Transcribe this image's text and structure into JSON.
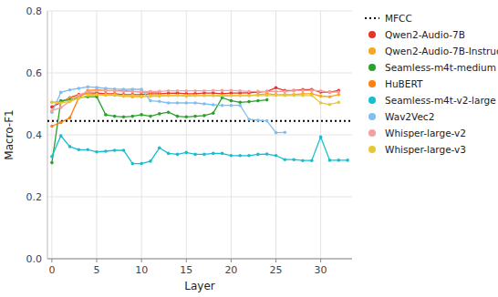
{
  "chart_data": {
    "type": "line",
    "xlabel": "Layer",
    "ylabel": "Macro-F1",
    "xlim": [
      -0.5,
      33.5
    ],
    "ylim": [
      0.0,
      0.8
    ],
    "xticks": [
      0,
      5,
      10,
      15,
      20,
      25,
      30
    ],
    "yticks": [
      {
        "value": 0.0,
        "label": "0.0"
      },
      0.2,
      0.4,
      0.6,
      0.8
    ],
    "grid": true,
    "legend": "right",
    "marker": "circle",
    "series": [
      {
        "name": "MFCC",
        "type": "hline",
        "color": "#000000",
        "line_style": "dotted",
        "marker": "none",
        "values": [
          0.445
        ]
      },
      {
        "name": "Qwen2-Audio-7B",
        "color": "#e8312a",
        "x": [
          0,
          1,
          2,
          3,
          4,
          5,
          6,
          7,
          8,
          9,
          10,
          11,
          12,
          13,
          14,
          15,
          16,
          17,
          18,
          19,
          20,
          21,
          22,
          23,
          24,
          25,
          26,
          27,
          28,
          29,
          30,
          31,
          32
        ],
        "values": [
          0.49,
          0.505,
          0.52,
          0.53,
          0.535,
          0.535,
          0.533,
          0.533,
          0.53,
          0.53,
          0.53,
          0.533,
          0.533,
          0.534,
          0.535,
          0.533,
          0.533,
          0.535,
          0.535,
          0.533,
          0.535,
          0.535,
          0.536,
          0.538,
          0.54,
          0.552,
          0.543,
          0.543,
          0.546,
          0.546,
          0.538,
          0.538,
          0.543
        ]
      },
      {
        "name": "Qwen2-Audio-7B-Instruct",
        "color": "#f5a623",
        "x": [
          0,
          1,
          2,
          3,
          4,
          5,
          6,
          7,
          8,
          9,
          10,
          11,
          12,
          13,
          14,
          15,
          16,
          17,
          18,
          19,
          20,
          21,
          22,
          23,
          24,
          25,
          26,
          27,
          28,
          29,
          30,
          31,
          32
        ],
        "values": [
          0.505,
          0.508,
          0.518,
          0.527,
          0.533,
          0.53,
          0.528,
          0.528,
          0.525,
          0.523,
          0.523,
          0.525,
          0.525,
          0.527,
          0.528,
          0.525,
          0.527,
          0.527,
          0.527,
          0.525,
          0.527,
          0.527,
          0.527,
          0.53,
          0.533,
          0.53,
          0.53,
          0.53,
          0.533,
          0.533,
          0.525,
          0.523,
          0.53
        ]
      },
      {
        "name": "Seamless-m4t-medium",
        "color": "#2ca02c",
        "x": [
          0,
          1,
          2,
          3,
          4,
          5,
          6,
          7,
          8,
          9,
          10,
          11,
          12,
          13,
          14,
          15,
          16,
          17,
          18,
          19,
          20,
          21,
          22,
          23,
          24
        ],
        "values": [
          0.31,
          0.51,
          0.513,
          0.52,
          0.523,
          0.523,
          0.465,
          0.46,
          0.458,
          0.46,
          0.465,
          0.46,
          0.468,
          0.473,
          0.46,
          0.458,
          0.46,
          0.462,
          0.47,
          0.52,
          0.51,
          0.505,
          0.507,
          0.51,
          0.513
        ]
      },
      {
        "name": "HuBERT",
        "color": "#ff7f0e",
        "x": [
          0,
          1,
          2,
          3,
          4,
          5,
          6,
          7,
          8,
          9,
          10,
          11,
          12
        ],
        "values": [
          0.428,
          0.44,
          0.455,
          0.52,
          0.543,
          0.545,
          0.543,
          0.543,
          0.543,
          0.54,
          0.538,
          0.538,
          0.538
        ]
      },
      {
        "name": "Seamless-m4t-v2-large",
        "color": "#17becf",
        "x": [
          0,
          1,
          2,
          3,
          4,
          5,
          6,
          7,
          8,
          9,
          10,
          11,
          12,
          13,
          14,
          15,
          16,
          17,
          18,
          19,
          20,
          21,
          22,
          23,
          24,
          25,
          26,
          27,
          28,
          29,
          30,
          31,
          32,
          33
        ],
        "values": [
          0.33,
          0.397,
          0.362,
          0.352,
          0.352,
          0.345,
          0.347,
          0.35,
          0.35,
          0.307,
          0.307,
          0.315,
          0.358,
          0.34,
          0.337,
          0.343,
          0.337,
          0.337,
          0.34,
          0.34,
          0.333,
          0.333,
          0.333,
          0.337,
          0.338,
          0.333,
          0.32,
          0.32,
          0.317,
          0.317,
          0.393,
          0.318,
          0.318,
          0.318
        ]
      },
      {
        "name": "Wav2Vec2",
        "color": "#7fbfef",
        "x": [
          0,
          1,
          2,
          3,
          4,
          5,
          6,
          7,
          8,
          9,
          10,
          11,
          12,
          13,
          14,
          15,
          16,
          17,
          18,
          19,
          20,
          21,
          22,
          23,
          24,
          25,
          26
        ],
        "values": [
          0.473,
          0.537,
          0.545,
          0.55,
          0.555,
          0.553,
          0.55,
          0.548,
          0.547,
          0.547,
          0.547,
          0.51,
          0.508,
          0.503,
          0.503,
          0.503,
          0.503,
          0.5,
          0.497,
          0.495,
          0.495,
          0.495,
          0.45,
          0.447,
          0.445,
          0.407,
          0.408
        ]
      },
      {
        "name": "Whisper-large-v2",
        "color": "#f4a0a0",
        "x": [
          0,
          1,
          2,
          3,
          4,
          5,
          6,
          7,
          8,
          9,
          10,
          11,
          12,
          13,
          14,
          15,
          16,
          17,
          18,
          19,
          20,
          21,
          22,
          23,
          24,
          25,
          26,
          27,
          28,
          29,
          30,
          31,
          32
        ],
        "values": [
          0.478,
          0.488,
          0.508,
          0.527,
          0.54,
          0.542,
          0.542,
          0.542,
          0.54,
          0.54,
          0.54,
          0.54,
          0.54,
          0.542,
          0.542,
          0.542,
          0.542,
          0.542,
          0.543,
          0.543,
          0.543,
          0.542,
          0.54,
          0.54,
          0.54,
          0.54,
          0.54,
          0.542,
          0.543,
          0.543,
          0.542,
          0.538,
          0.538
        ]
      },
      {
        "name": "Whisper-large-v3",
        "color": "#e8c832",
        "x": [
          0,
          1,
          2,
          3,
          4,
          5,
          6,
          7,
          8,
          9,
          10,
          11,
          12,
          13,
          14,
          15,
          16,
          17,
          18,
          19,
          20,
          21,
          22,
          23,
          24,
          25,
          26,
          27,
          28,
          29,
          30,
          31,
          32
        ],
        "values": [
          0.505,
          0.503,
          0.508,
          0.518,
          0.527,
          0.53,
          0.53,
          0.53,
          0.527,
          0.527,
          0.525,
          0.527,
          0.527,
          0.527,
          0.528,
          0.527,
          0.527,
          0.527,
          0.527,
          0.527,
          0.527,
          0.527,
          0.527,
          0.527,
          0.527,
          0.527,
          0.527,
          0.527,
          0.527,
          0.527,
          0.503,
          0.498,
          0.505
        ]
      }
    ]
  }
}
